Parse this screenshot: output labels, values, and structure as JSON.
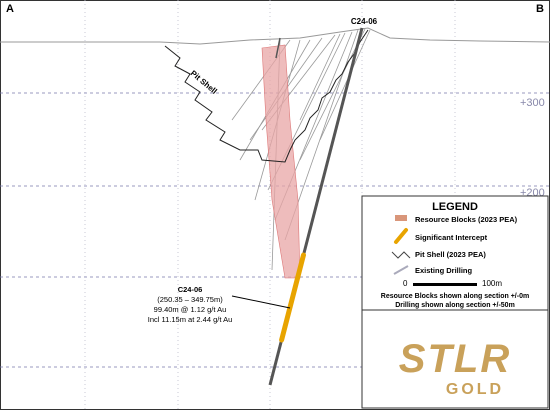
{
  "section": {
    "left_label": "A",
    "right_label": "B",
    "hole_label": "C24-06",
    "pit_label": "Pit Shell",
    "elevations": [
      "+300",
      "+200"
    ]
  },
  "callout": {
    "hole": "C24-06",
    "interval": "(250.35 – 349.75m)",
    "result": "99.40m @ 1.12 g/t Au",
    "including": "Incl 11.15m at 2.44 g/t Au"
  },
  "legend": {
    "title": "LEGEND",
    "items": [
      "Resource Blocks (2023 PEA)",
      "Significant Intercept",
      "Pit Shell (2023 PEA)",
      "Existing Drilling"
    ],
    "scale_start": "0",
    "scale_end": "100m",
    "notes": [
      "Resource Blocks shown along section +/-0m",
      "Drilling shown along section +/-50m"
    ]
  },
  "logo": {
    "name": "STLR",
    "sub": "GOLD"
  }
}
